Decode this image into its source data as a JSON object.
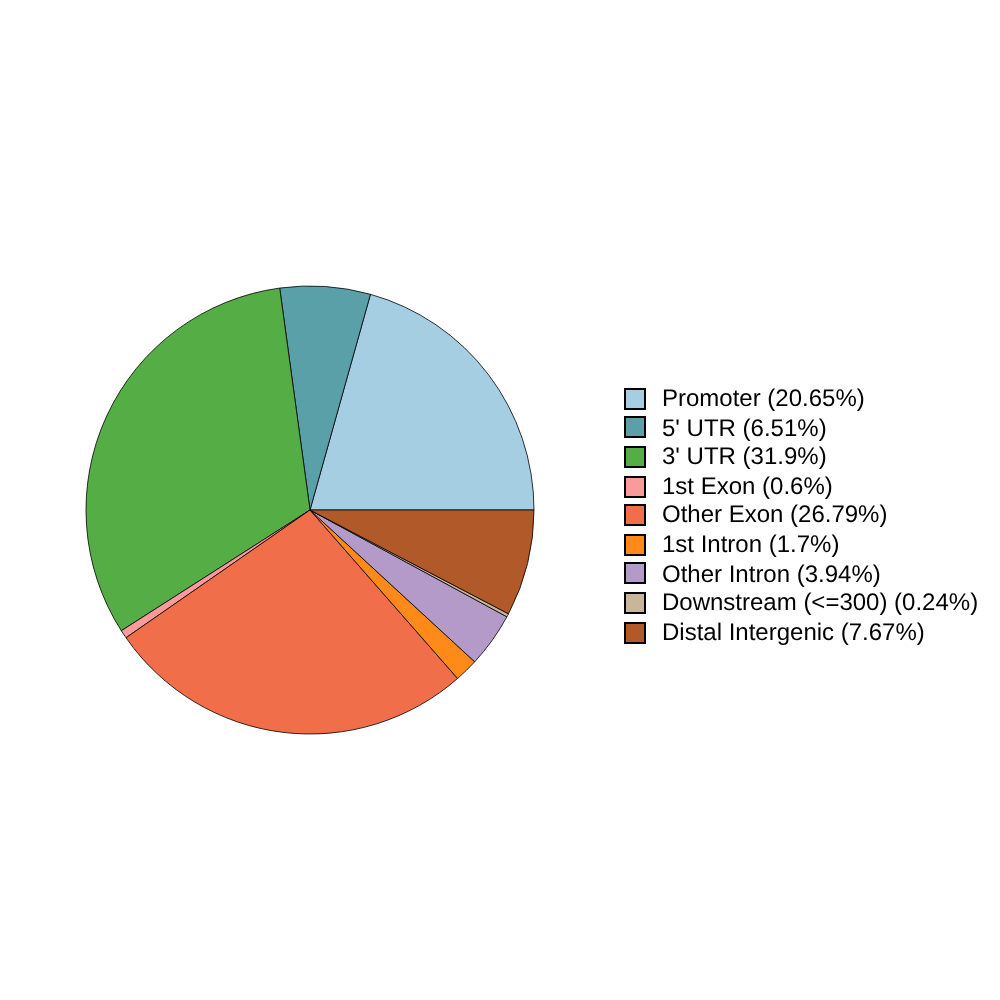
{
  "chart_data": {
    "type": "pie",
    "categories": [
      "Promoter (20.65%)",
      "5' UTR (6.51%)",
      "3' UTR (31.9%)",
      "1st Exon (0.6%)",
      "Other Exon (26.79%)",
      "1st Intron (1.7%)",
      "Other Intron (3.94%)",
      "Downstream (<=300) (0.24%)",
      "Distal Intergenic (7.67%)"
    ],
    "values": [
      20.65,
      6.51,
      31.9,
      0.6,
      26.79,
      1.7,
      3.94,
      0.24,
      7.67
    ],
    "colors": [
      "#a6cee3",
      "#5aa0a8",
      "#55ae45",
      "#f89b9a",
      "#f16e4a",
      "#ff8a1a",
      "#b49ac8",
      "#c9b597",
      "#b15928"
    ],
    "legend": "right"
  }
}
